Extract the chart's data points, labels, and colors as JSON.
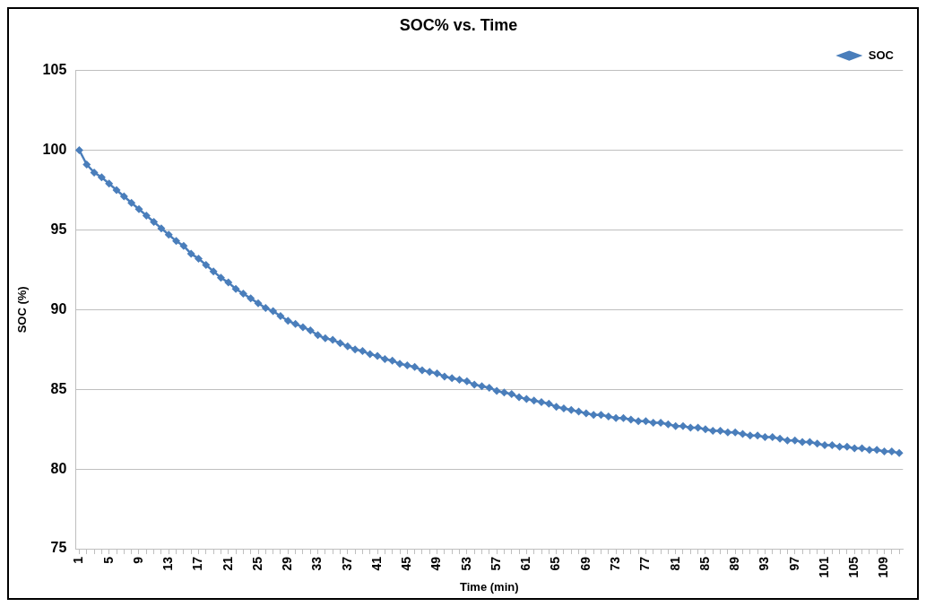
{
  "chart_data": {
    "type": "line",
    "title": "SOC% vs. Time",
    "xlabel": "Time (min)",
    "ylabel": "SOC (%)",
    "categories": [
      "1",
      null,
      null,
      null,
      "5",
      null,
      null,
      null,
      "9",
      null,
      null,
      null,
      "13",
      null,
      null,
      null,
      "17",
      null,
      null,
      null,
      "21",
      null,
      null,
      null,
      "25",
      null,
      null,
      null,
      "29",
      null,
      null,
      null,
      "33",
      null,
      null,
      null,
      "37",
      null,
      null,
      null,
      "41",
      null,
      null,
      null,
      "45",
      null,
      null,
      null,
      "49",
      null,
      null,
      null,
      "53",
      null,
      null,
      null,
      "57",
      null,
      null,
      null,
      "61",
      null,
      null,
      null,
      "65",
      null,
      null,
      null,
      "69",
      null,
      null,
      null,
      "73",
      null,
      null,
      null,
      "77",
      null,
      null,
      null,
      "81",
      null,
      null,
      null,
      "85",
      null,
      null,
      null,
      "89",
      null,
      null,
      null,
      "93",
      null,
      null,
      null,
      "97",
      null,
      null,
      null,
      "101",
      null,
      null,
      null,
      "105",
      null,
      null,
      null,
      "109",
      null,
      null
    ],
    "series": [
      {
        "name": "SOC",
        "color": "#4a7ebb",
        "values": [
          100.0,
          99.1,
          98.6,
          98.3,
          97.9,
          97.5,
          97.1,
          96.7,
          96.3,
          95.9,
          95.5,
          95.1,
          94.7,
          94.3,
          94.0,
          93.5,
          93.2,
          92.8,
          92.4,
          92.0,
          91.7,
          91.3,
          91.0,
          90.7,
          90.4,
          90.1,
          89.9,
          89.6,
          89.3,
          89.1,
          88.9,
          88.7,
          88.4,
          88.2,
          88.1,
          87.9,
          87.7,
          87.5,
          87.4,
          87.2,
          87.1,
          86.9,
          86.8,
          86.6,
          86.5,
          86.4,
          86.2,
          86.1,
          86.0,
          85.8,
          85.7,
          85.6,
          85.5,
          85.3,
          85.2,
          85.1,
          84.9,
          84.8,
          84.7,
          84.5,
          84.4,
          84.3,
          84.2,
          84.1,
          83.9,
          83.8,
          83.7,
          83.6,
          83.5,
          83.4,
          83.4,
          83.3,
          83.2,
          83.2,
          83.1,
          83.0,
          83.0,
          82.9,
          82.9,
          82.8,
          82.7,
          82.7,
          82.6,
          82.6,
          82.5,
          82.4,
          82.4,
          82.3,
          82.3,
          82.2,
          82.1,
          82.1,
          82.0,
          82.0,
          81.9,
          81.8,
          81.8,
          81.7,
          81.7,
          81.6,
          81.5,
          81.5,
          81.4,
          81.4,
          81.3,
          81.3,
          81.2,
          81.2,
          81.1,
          81.1,
          81.0
        ]
      }
    ],
    "ylim": [
      75,
      105
    ],
    "yticks": [
      75,
      80,
      85,
      90,
      95,
      100,
      105
    ],
    "grid": "y",
    "legend": "top right",
    "marker": "diamond",
    "line_style": "solid"
  }
}
